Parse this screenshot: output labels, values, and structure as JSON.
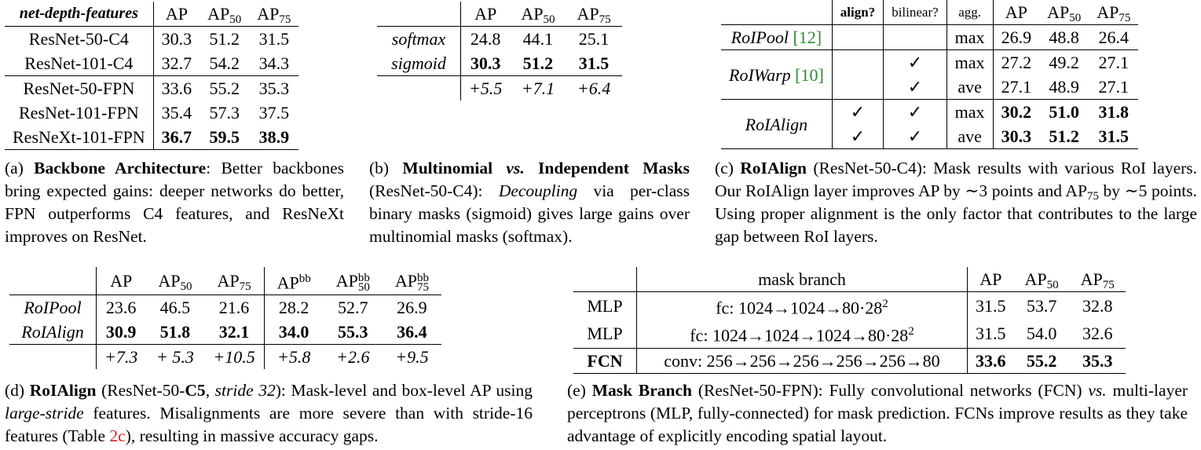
{
  "table_a": {
    "header": [
      "net-depth-features",
      "AP",
      "AP50",
      "AP75"
    ],
    "rows": [
      [
        "ResNet-50-C4",
        "30.3",
        "51.2",
        "31.5"
      ],
      [
        "ResNet-101-C4",
        "32.7",
        "54.2",
        "34.3"
      ],
      [
        "ResNet-50-FPN",
        "33.6",
        "55.2",
        "35.3"
      ],
      [
        "ResNet-101-FPN",
        "35.4",
        "57.3",
        "37.5"
      ],
      [
        "ResNeXt-101-FPN",
        "36.7",
        "59.5",
        "38.9"
      ]
    ],
    "caption_label": "(a)",
    "caption_title": "Backbone Architecture",
    "caption_text": ": Better backbones bring expected gains: deeper networks do better, FPN outperforms C4 features, and ResNeXt improves on ResNet."
  },
  "table_b": {
    "header": [
      "",
      "AP",
      "AP50",
      "AP75"
    ],
    "rows": [
      [
        "softmax",
        "24.8",
        "44.1",
        "25.1"
      ],
      [
        "sigmoid",
        "30.3",
        "51.2",
        "31.5"
      ],
      [
        "",
        "+5.5",
        "+7.1",
        "+6.4"
      ]
    ],
    "caption_label": "(b)",
    "caption_title_1": "Multinomial",
    "caption_title_vs": "vs.",
    "caption_title_2": "Independent Masks",
    "caption_paren": "(ResNet-50-C4):",
    "caption_em": "Decoupling",
    "caption_text": "via per-class binary masks (sigmoid) gives large gains over multinomial masks (softmax)."
  },
  "table_c": {
    "header": [
      "",
      "align?",
      "bilinear?",
      "agg.",
      "AP",
      "AP50",
      "AP75"
    ],
    "rows": [
      {
        "name": "RoIPool",
        "cite": "[12]",
        "align": "",
        "bilinear": "",
        "agg": "max",
        "ap": "26.9",
        "ap50": "48.8",
        "ap75": "26.4"
      },
      {
        "name": "RoIWarp",
        "cite": "[10]",
        "align": "",
        "bilinear": "✓",
        "agg": "max",
        "ap": "27.2",
        "ap50": "49.2",
        "ap75": "27.1"
      },
      {
        "name": "",
        "cite": "",
        "align": "",
        "bilinear": "✓",
        "agg": "ave",
        "ap": "27.1",
        "ap50": "48.9",
        "ap75": "27.1"
      },
      {
        "name": "RoIAlign",
        "cite": "",
        "align": "✓",
        "bilinear": "✓",
        "agg": "max",
        "ap": "30.2",
        "ap50": "51.0",
        "ap75": "31.8"
      },
      {
        "name": "",
        "cite": "",
        "align": "✓",
        "bilinear": "✓",
        "agg": "ave",
        "ap": "30.3",
        "ap50": "51.2",
        "ap75": "31.5"
      }
    ],
    "caption_label": "(c)",
    "caption_title": "RoIAlign",
    "caption_text_1": "(ResNet-50-C4): Mask results with various RoI layers. Our RoIAlign layer improves AP by ∼3 points and AP",
    "caption_sub": "75",
    "caption_text_2": "by ∼5 points. Using proper alignment is the only factor that contributes to the large gap between RoI layers."
  },
  "table_d": {
    "header": [
      "",
      "AP",
      "AP50",
      "AP75",
      "APbb",
      "APbb50",
      "APbb75"
    ],
    "rows": [
      [
        "RoIPool",
        "23.6",
        "46.5",
        "21.6",
        "28.2",
        "52.7",
        "26.9"
      ],
      [
        "RoIAlign",
        "30.9",
        "51.8",
        "32.1",
        "34.0",
        "55.3",
        "36.4"
      ],
      [
        "",
        "+7.3",
        "+ 5.3",
        "+10.5",
        "+5.8",
        "+2.6",
        "+9.5"
      ]
    ],
    "caption_label": "(d)",
    "caption_title": "RoIAlign",
    "caption_paren_1": "(ResNet-50-",
    "caption_paren_bold": "C5",
    "caption_paren_em": "stride 32",
    "caption_text_1": "): Mask-level and box-level AP using",
    "caption_em": "large-stride",
    "caption_text_2": "features. Misalignments are more severe than with stride-16 features (Table",
    "caption_ref": "2c",
    "caption_text_3": "), resulting in massive accuracy gaps."
  },
  "table_e": {
    "header": [
      "",
      "mask branch",
      "AP",
      "AP50",
      "AP75"
    ],
    "rows": [
      [
        "MLP",
        "fc: 1024→1024→80·28",
        "31.5",
        "53.7",
        "32.8"
      ],
      [
        "MLP",
        "fc: 1024→1024→1024→80·28",
        "31.5",
        "54.0",
        "32.6"
      ],
      [
        "FCN",
        "conv: 256→256→256→256→256→80",
        "33.6",
        "55.2",
        "35.3"
      ]
    ],
    "sup": "2",
    "caption_label": "(e)",
    "caption_title": "Mask Branch",
    "caption_paren": "(ResNet-50-FPN): Fully convolutional networks (FCN)",
    "caption_vs": "vs.",
    "caption_text": "multi-layer perceptrons (MLP, fully-connected) for mask prediction. FCNs improve results as they take advantage of explicitly encoding spatial layout."
  }
}
